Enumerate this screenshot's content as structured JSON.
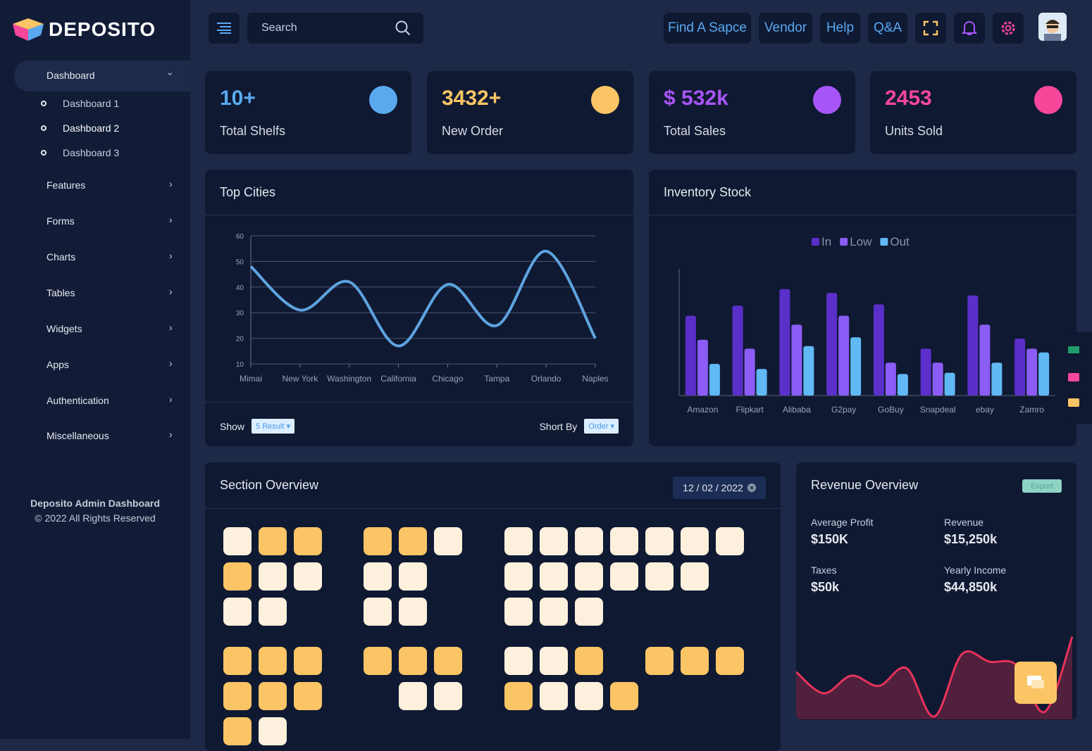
{
  "brand": "DEPOSITO",
  "sidebar": {
    "menu": [
      "Dashboard",
      "Features",
      "Forms",
      "Charts",
      "Tables",
      "Widgets",
      "Apps",
      "Authentication",
      "Miscellaneous"
    ],
    "submenu": [
      "Dashboard 1",
      "Dashboard 2",
      "Dashboard 3"
    ],
    "footer": [
      "Deposito Admin Dashboard",
      "© 2022 All Rights Reserved"
    ]
  },
  "header": {
    "search": "Search",
    "links": [
      "Find A Sapce",
      "Vendor",
      "Help",
      "Q&A"
    ]
  },
  "stats": [
    {
      "value": "10+",
      "label": "Total Shelfs",
      "color": "#5aa9ef"
    },
    {
      "value": "3432+",
      "label": "New Order",
      "color": "#fbc565"
    },
    {
      "value": "$ 532k",
      "label": "Total Sales",
      "color": "#a855f7"
    },
    {
      "value": "2453",
      "label": "Units Sold",
      "color": "#f7479b"
    }
  ],
  "top_cities_footer": {
    "show": "Show",
    "show_select": "5 Result",
    "sort": "Short By",
    "sort_select": "Order"
  },
  "section_overview": {
    "title": "Section Overview",
    "date": "12 / 02 / 2022"
  },
  "revenue": {
    "export": "Export",
    "metrics": [
      {
        "label": "Average Profit",
        "value": "$150K"
      },
      {
        "label": "Revenue",
        "value": "$15,250k"
      },
      {
        "label": "Taxes",
        "value": "$50k"
      },
      {
        "label": "Yearly Income",
        "value": "$44,850k"
      }
    ]
  },
  "chart_data": [
    {
      "type": "line",
      "title": "Top Cities",
      "categories": [
        "Mimai",
        "New York",
        "Washington",
        "California",
        "Chicago",
        "Tampa",
        "Orlando",
        "Naples"
      ],
      "values": [
        48,
        31,
        42,
        17,
        41,
        25,
        54,
        20
      ],
      "color": "#5ea3e0",
      "ylim": [
        10,
        60
      ],
      "yticks": [
        10,
        20,
        30,
        40,
        50,
        60
      ],
      "grid": true
    },
    {
      "type": "bar",
      "title": "Inventory Stock",
      "categories": [
        "Amazon",
        "Flipkart",
        "Alibaba",
        "G2pay",
        "GoBuy",
        "Snapdeal",
        "ebay",
        "Zamro"
      ],
      "ylim": [
        0,
        100
      ],
      "legend": "top",
      "series": [
        {
          "name": "In",
          "color": "#5b2fc9",
          "values": [
            63,
            71,
            84,
            81,
            72,
            37,
            79,
            45
          ]
        },
        {
          "name": "Low",
          "color": "#8b5cf6",
          "values": [
            44,
            37,
            56,
            63,
            26,
            26,
            56,
            37
          ]
        },
        {
          "name": "Out",
          "color": "#60b8f5",
          "values": [
            25,
            21,
            39,
            46,
            17,
            18,
            26,
            34
          ]
        }
      ]
    },
    {
      "type": "area",
      "title": "Revenue Overview",
      "categories": [
        null,
        null,
        null,
        null,
        null,
        null,
        null,
        null,
        null,
        null,
        null
      ],
      "values": [
        51,
        28,
        47,
        36,
        55,
        3,
        70,
        62,
        58,
        8,
        89
      ],
      "color": "#e8325a",
      "ylim": [
        0,
        100
      ]
    }
  ]
}
